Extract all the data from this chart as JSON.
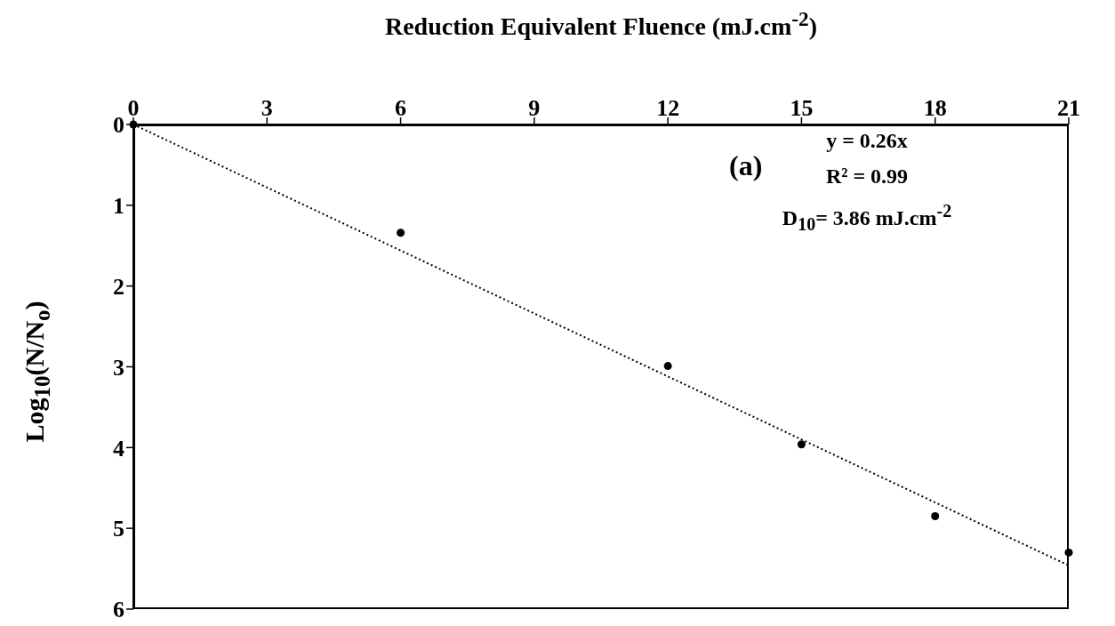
{
  "chart_data": {
    "type": "scatter",
    "xlabel": "Reduction Equivalent Fluence (mJ.cm$^{-2}$)",
    "ylabel": "Log$_{10}$(N/N$_{o}$)",
    "x": [
      0,
      6,
      12,
      15,
      18,
      21
    ],
    "series": [
      {
        "type": "scatter",
        "color": "#000000",
        "marker": "circle",
        "values": [
          0,
          1.34,
          2.99,
          3.96,
          4.85,
          5.3
        ]
      },
      {
        "type": "line",
        "x": [
          0,
          21
        ],
        "color": "#000000",
        "line_style": "dotted",
        "marker": "none",
        "values": [
          0,
          5.46
        ]
      }
    ],
    "xlim": [
      0,
      21
    ],
    "xticks": [
      0,
      3,
      6,
      9,
      12,
      15,
      18,
      21
    ],
    "ylim": [
      6,
      0
    ],
    "yticks": [
      0,
      1,
      2,
      3,
      4,
      5,
      6
    ],
    "grid": false,
    "annotations": [
      "(a)",
      "y = 0.26x",
      "R² = 0.99",
      "D$_{10}$= 3.86 mJ.cm$^{-2}$"
    ]
  }
}
